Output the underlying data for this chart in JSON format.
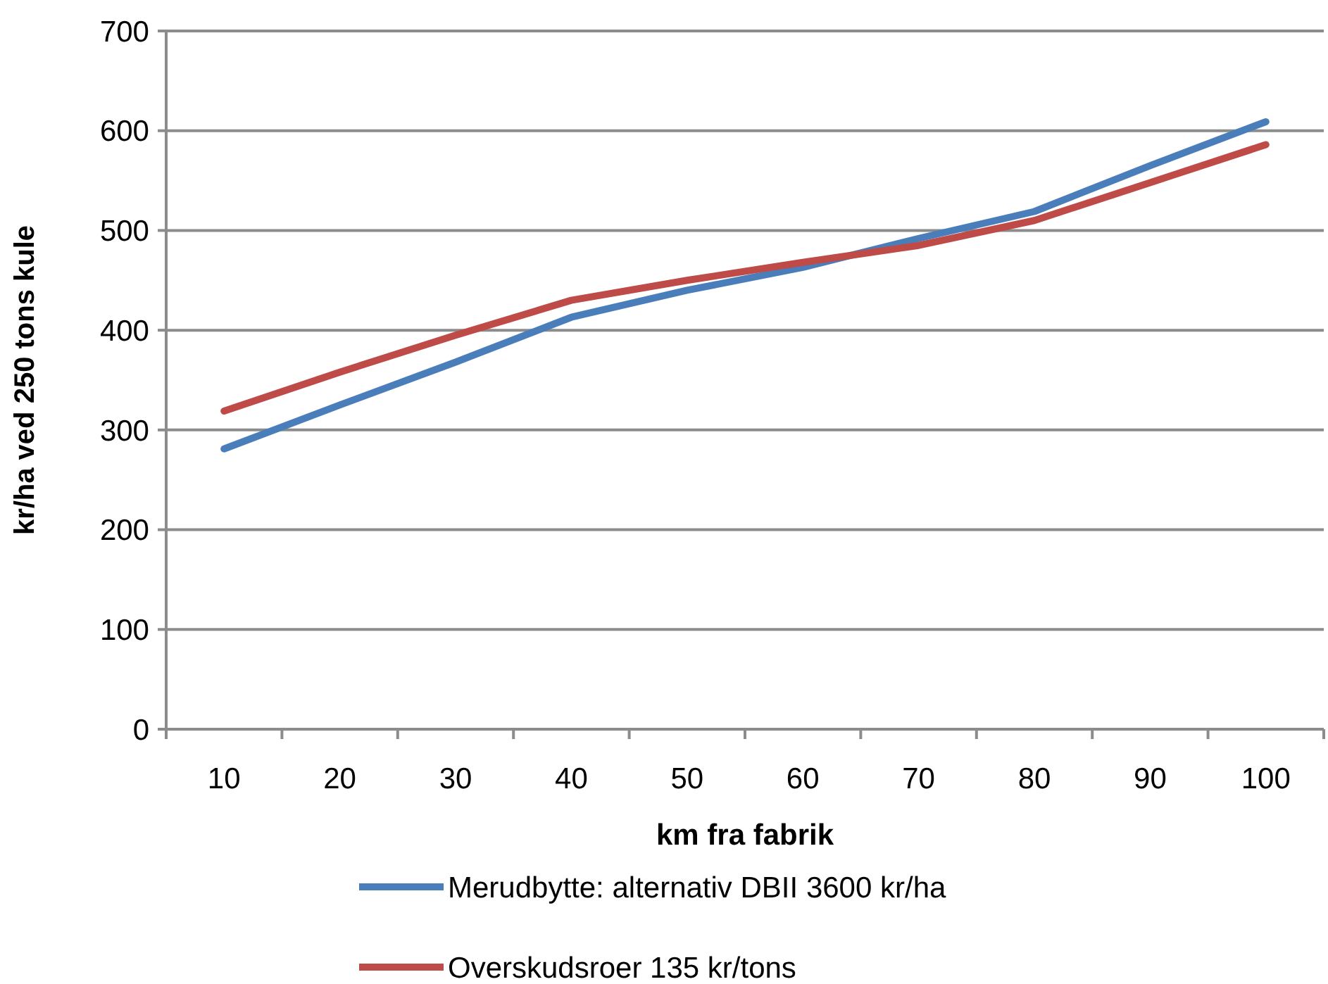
{
  "chart_data": {
    "type": "line",
    "xlabel": "km fra fabrik",
    "ylabel": "kr/ha ved 250 tons kule",
    "categories": [
      "10",
      "20",
      "30",
      "40",
      "50",
      "60",
      "70",
      "80",
      "90",
      "100"
    ],
    "series": [
      {
        "name": "Merudbytte: alternativ DBII 3600 kr/ha",
        "color": "#4a7ebb",
        "values": [
          281,
          325,
          368,
          413,
          440,
          463,
          492,
          519,
          565,
          609
        ]
      },
      {
        "name": "Overskudsroer 135 kr/tons",
        "color": "#be4b48",
        "values": [
          319,
          358,
          395,
          430,
          450,
          468,
          485,
          510,
          548,
          586
        ]
      }
    ],
    "ylim": [
      0,
      700
    ],
    "yticks": [
      0,
      100,
      200,
      300,
      400,
      500,
      600,
      700
    ],
    "grid": "y",
    "legend": "bottom",
    "marker": "none",
    "line_style": "solid"
  }
}
